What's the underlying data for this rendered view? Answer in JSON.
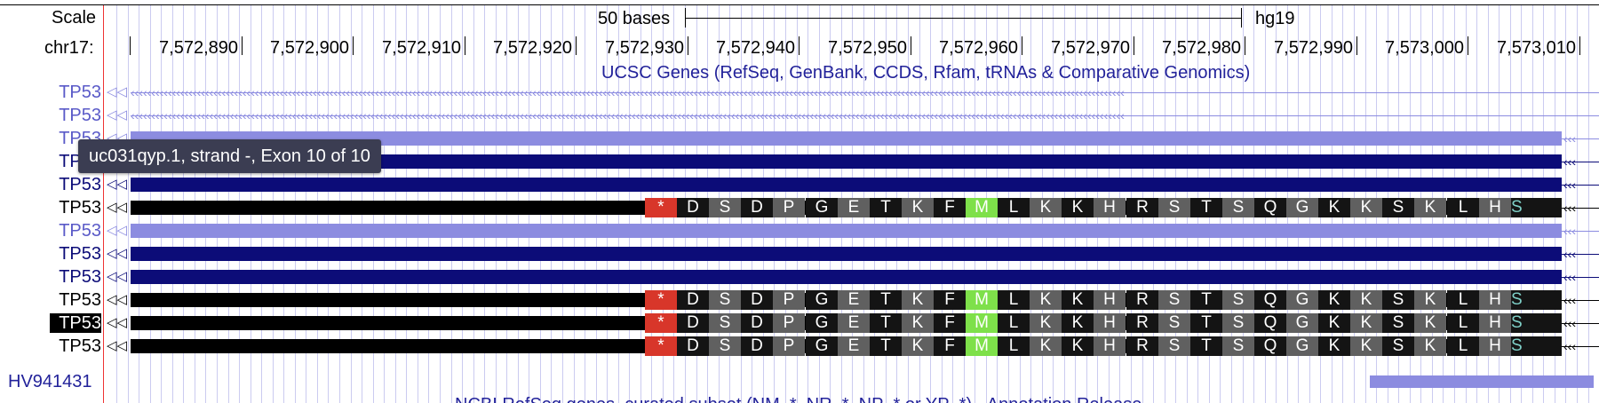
{
  "browser": {
    "scale_label": "Scale",
    "chrom_label": "chr17:",
    "scale_bar_text": "50 bases",
    "assembly": "hg19",
    "positions": [
      "7,572,890",
      "7,572,900",
      "7,572,910",
      "7,572,920",
      "7,572,930",
      "7,572,940",
      "7,572,950",
      "7,572,960",
      "7,572,970",
      "7,572,980",
      "7,572,990",
      "7,573,000",
      "7,573,010"
    ],
    "track_title": "UCSC Genes (RefSeq, GenBank, CCDS, Rfam, tRNAs & Comparative Genomics)",
    "tooltip": "uc031qyp.1, strand -, Exon 10 of 10",
    "colors": {
      "light": "#8c8ce0",
      "dark": "#0c0c78",
      "coding": "#000000",
      "stop": "#d8362a",
      "start_met": "#7ee04a",
      "aa_dark": "#141414",
      "aa_gray": "#606060"
    },
    "genes": [
      {
        "name": "TP53",
        "style": "light-arrow"
      },
      {
        "name": "TP53",
        "style": "light-arrow"
      },
      {
        "name": "TP53",
        "style": "light"
      },
      {
        "name": "TP53",
        "style": "dark"
      },
      {
        "name": "TP53",
        "style": "dark"
      },
      {
        "name": "TP53",
        "style": "coding"
      },
      {
        "name": "TP53",
        "style": "light"
      },
      {
        "name": "TP53",
        "style": "dark"
      },
      {
        "name": "TP53",
        "style": "dark"
      },
      {
        "name": "TP53",
        "style": "coding"
      },
      {
        "name": "TP53",
        "style": "coding",
        "selected": true
      },
      {
        "name": "TP53",
        "style": "coding"
      }
    ],
    "amino_acids": [
      "*",
      "D",
      "S",
      "D",
      "P",
      "G",
      "E",
      "T",
      "K",
      "F",
      "M",
      "L",
      "K",
      "K",
      "H",
      "R",
      "S",
      "T",
      "S",
      "Q",
      "G",
      "K",
      "K",
      "S",
      "K",
      "L",
      "H",
      "S"
    ],
    "hv_label": "HV941431",
    "next_track_partial": "NCBI RefSeq genes, curated subset (NM_*, NR_*, NP_* or YP_*) - Annotation Release ..."
  }
}
